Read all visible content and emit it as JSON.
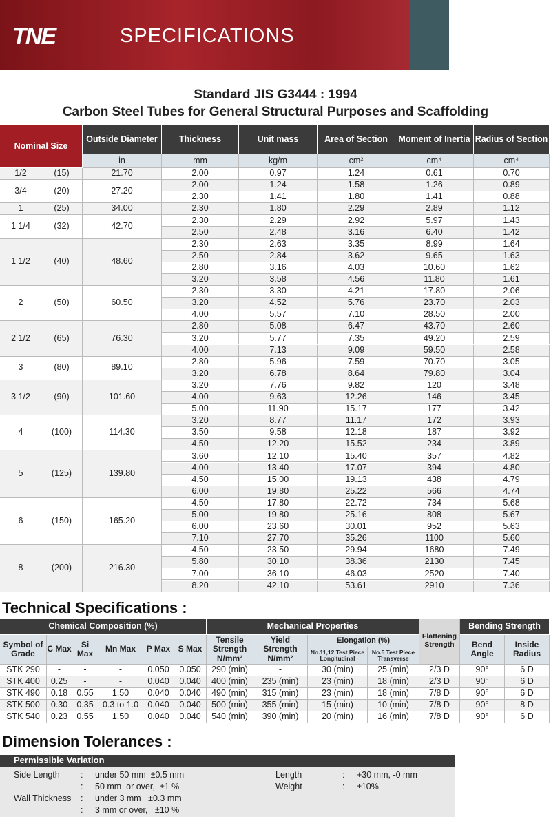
{
  "header": {
    "logo": "TNE",
    "title": "SPECIFICATIONS"
  },
  "doc": {
    "title": "Standard JIS G3444 : 1994",
    "subtitle": "Carbon Steel Tubes for General Structural Purposes and Scaffolding"
  },
  "table": {
    "headers": [
      "Nominal Size",
      "Outside Diameter",
      "Thickness",
      "Unit mass",
      "Area of Section",
      "Moment of Inertia",
      "Radius of Section"
    ],
    "units": [
      "in",
      "mm",
      "kg/m",
      "cm²",
      "cm⁴",
      "cm⁴"
    ],
    "groups": [
      {
        "size": "1/2",
        "code": "(15)",
        "od": "21.70",
        "rows": [
          [
            "2.00",
            "0.97",
            "1.24",
            "0.61",
            "0.70"
          ]
        ]
      },
      {
        "size": "3/4",
        "code": "(20)",
        "od": "27.20",
        "rows": [
          [
            "2.00",
            "1.24",
            "1.58",
            "1.26",
            "0.89"
          ],
          [
            "2.30",
            "1.41",
            "1.80",
            "1.41",
            "0.88"
          ]
        ]
      },
      {
        "size": "1",
        "code": "(25)",
        "od": "34.00",
        "rows": [
          [
            "2.30",
            "1.80",
            "2.29",
            "2.89",
            "1.12"
          ]
        ]
      },
      {
        "size": "1 1/4",
        "code": "(32)",
        "od": "42.70",
        "rows": [
          [
            "2.30",
            "2.29",
            "2.92",
            "5.97",
            "1.43"
          ],
          [
            "2.50",
            "2.48",
            "3.16",
            "6.40",
            "1.42"
          ]
        ]
      },
      {
        "size": "1 1/2",
        "code": "(40)",
        "od": "48.60",
        "rows": [
          [
            "2.30",
            "2.63",
            "3.35",
            "8.99",
            "1.64"
          ],
          [
            "2.50",
            "2.84",
            "3.62",
            "9.65",
            "1.63"
          ],
          [
            "2.80",
            "3.16",
            "4.03",
            "10.60",
            "1.62"
          ],
          [
            "3.20",
            "3.58",
            "4.56",
            "11.80",
            "1.61"
          ]
        ]
      },
      {
        "size": "2",
        "code": "(50)",
        "od": "60.50",
        "rows": [
          [
            "2.30",
            "3.30",
            "4.21",
            "17.80",
            "2.06"
          ],
          [
            "3.20",
            "4.52",
            "5.76",
            "23.70",
            "2.03"
          ],
          [
            "4.00",
            "5.57",
            "7.10",
            "28.50",
            "2.00"
          ]
        ]
      },
      {
        "size": "2 1/2",
        "code": "(65)",
        "od": "76.30",
        "rows": [
          [
            "2.80",
            "5.08",
            "6.47",
            "43.70",
            "2.60"
          ],
          [
            "3.20",
            "5.77",
            "7.35",
            "49.20",
            "2.59"
          ],
          [
            "4.00",
            "7.13",
            "9.09",
            "59.50",
            "2.58"
          ]
        ]
      },
      {
        "size": "3",
        "code": "(80)",
        "od": "89.10",
        "rows": [
          [
            "2.80",
            "5.96",
            "7.59",
            "70.70",
            "3.05"
          ],
          [
            "3.20",
            "6.78",
            "8.64",
            "79.80",
            "3.04"
          ]
        ]
      },
      {
        "size": "3 1/2",
        "code": "(90)",
        "od": "101.60",
        "rows": [
          [
            "3.20",
            "7.76",
            "9.82",
            "120",
            "3.48"
          ],
          [
            "4.00",
            "9.63",
            "12.26",
            "146",
            "3.45"
          ],
          [
            "5.00",
            "11.90",
            "15.17",
            "177",
            "3.42"
          ]
        ]
      },
      {
        "size": "4",
        "code": "(100)",
        "od": "114.30",
        "rows": [
          [
            "3.20",
            "8.77",
            "11.17",
            "172",
            "3.93"
          ],
          [
            "3.50",
            "9.58",
            "12.18",
            "187",
            "3.92"
          ],
          [
            "4.50",
            "12.20",
            "15.52",
            "234",
            "3.89"
          ]
        ]
      },
      {
        "size": "5",
        "code": "(125)",
        "od": "139.80",
        "rows": [
          [
            "3.60",
            "12.10",
            "15.40",
            "357",
            "4.82"
          ],
          [
            "4.00",
            "13.40",
            "17.07",
            "394",
            "4.80"
          ],
          [
            "4.50",
            "15.00",
            "19.13",
            "438",
            "4.79"
          ],
          [
            "6.00",
            "19.80",
            "25.22",
            "566",
            "4.74"
          ]
        ]
      },
      {
        "size": "6",
        "code": "(150)",
        "od": "165.20",
        "rows": [
          [
            "4.50",
            "17.80",
            "22.72",
            "734",
            "5.68"
          ],
          [
            "5.00",
            "19.80",
            "25.16",
            "808",
            "5.67"
          ],
          [
            "6.00",
            "23.60",
            "30.01",
            "952",
            "5.63"
          ],
          [
            "7.10",
            "27.70",
            "35.26",
            "1100",
            "5.60"
          ]
        ]
      },
      {
        "size": "8",
        "code": "(200)",
        "od": "216.30",
        "rows": [
          [
            "4.50",
            "23.50",
            "29.94",
            "1680",
            "7.49"
          ],
          [
            "5.80",
            "30.10",
            "38.36",
            "2130",
            "7.45"
          ],
          [
            "7.00",
            "36.10",
            "46.03",
            "2520",
            "7.40"
          ],
          [
            "8.20",
            "42.10",
            "53.61",
            "2910",
            "7.36"
          ]
        ]
      }
    ]
  },
  "tech": {
    "title": "Technical Specifications :",
    "sections": [
      "Chemical Composition (%)",
      "Mechanical Properties",
      "Flattening Strength",
      "Bending Strength"
    ],
    "elongation": "Elongation (%)",
    "columns": [
      "Symbol of Grade",
      "C Max",
      "Si Max",
      "Mn Max",
      "P Max",
      "S Max",
      "Tensile Strength N/mm²",
      "Yield Strength N/mm²",
      "No.11,12 Test Piece Longitudinal",
      "No.5 Test Piece Transverse",
      "Bend Angle",
      "Inside Radius"
    ],
    "rows": [
      [
        "STK 290",
        "-",
        "-",
        "-",
        "0.050",
        "0.050",
        "290 (min)",
        "-",
        "30 (min)",
        "25 (min)",
        "2/3 D",
        "90°",
        "6 D"
      ],
      [
        "STK 400",
        "0.25",
        "-",
        "-",
        "0.040",
        "0.040",
        "400 (min)",
        "235 (min)",
        "23 (min)",
        "18 (min)",
        "2/3 D",
        "90°",
        "6 D"
      ],
      [
        "STK 490",
        "0.18",
        "0.55",
        "1.50",
        "0.040",
        "0.040",
        "490 (min)",
        "315 (min)",
        "23 (min)",
        "18 (min)",
        "7/8 D",
        "90°",
        "6 D"
      ],
      [
        "STK 500",
        "0.30",
        "0.35",
        "0.3 to 1.0",
        "0.040",
        "0.040",
        "500 (min)",
        "355 (min)",
        "15 (min)",
        "10 (min)",
        "7/8 D",
        "90°",
        "8 D"
      ],
      [
        "STK 540",
        "0.23",
        "0.55",
        "1.50",
        "0.040",
        "0.040",
        "540 (min)",
        "390 (min)",
        "20 (min)",
        "16 (min)",
        "7/8 D",
        "90°",
        "6 D"
      ]
    ]
  },
  "tolerances": {
    "title": "Dimension Tolerances :",
    "header": "Permissible Variation",
    "sep": ":",
    "left": [
      {
        "label": "Side Length",
        "lines": [
          "under 50 mm  ±0.5 mm",
          "50 mm  or over,  ±1 %"
        ]
      },
      {
        "label": "Wall Thickness",
        "lines": [
          "under 3 mm   ±0.3 mm",
          "3 mm or over,   ±10 %"
        ]
      }
    ],
    "right": [
      {
        "label": "Length",
        "lines": [
          "+30 mm, -0 mm"
        ]
      },
      {
        "label": "Weight",
        "lines": [
          "±10%"
        ]
      }
    ]
  }
}
